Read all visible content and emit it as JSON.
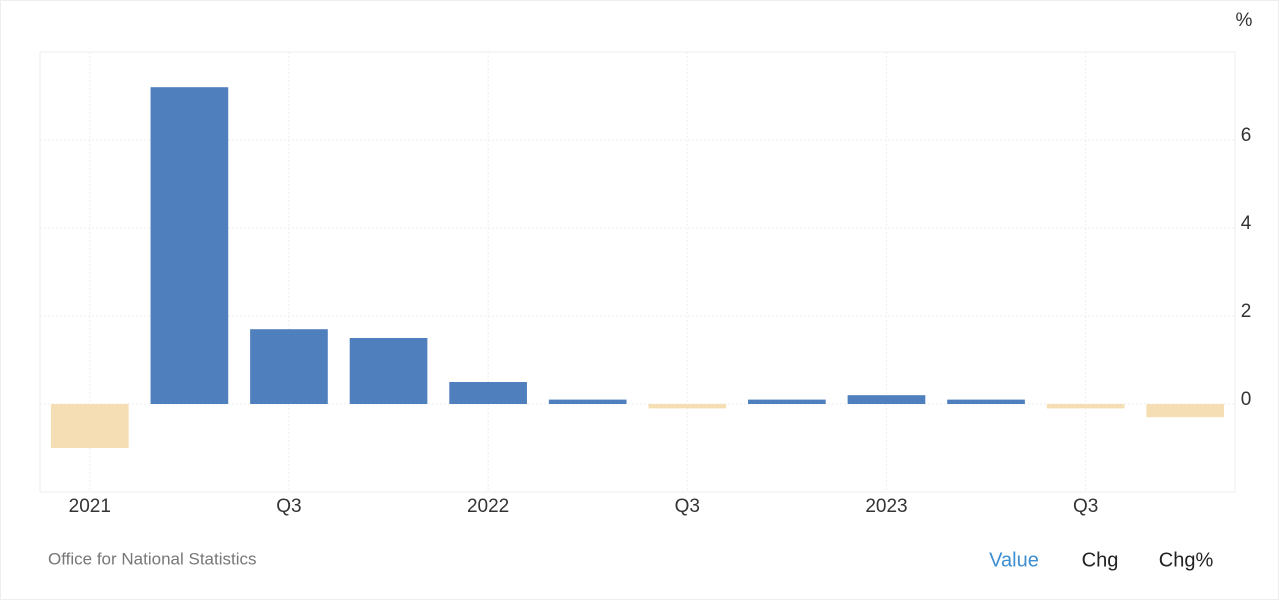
{
  "chart_data": {
    "type": "bar",
    "unit": "%",
    "categories": [
      "2021",
      null,
      "Q3",
      null,
      "2022",
      null,
      "Q3",
      null,
      "2023",
      null,
      "Q3",
      null
    ],
    "values": [
      -1.0,
      7.2,
      1.7,
      1.5,
      0.5,
      0.1,
      -0.1,
      0.1,
      0.2,
      0.1,
      -0.1,
      -0.3
    ],
    "positive_color": "#4f80bd",
    "negative_color": "#f5deb3",
    "ylim": [
      -2,
      8
    ],
    "yticks": [
      0,
      2,
      4,
      6
    ],
    "grid": true,
    "source": "Office for National Statistics",
    "buttons": [
      "Value",
      "Chg",
      "Chg%"
    ],
    "active_button": 0
  }
}
